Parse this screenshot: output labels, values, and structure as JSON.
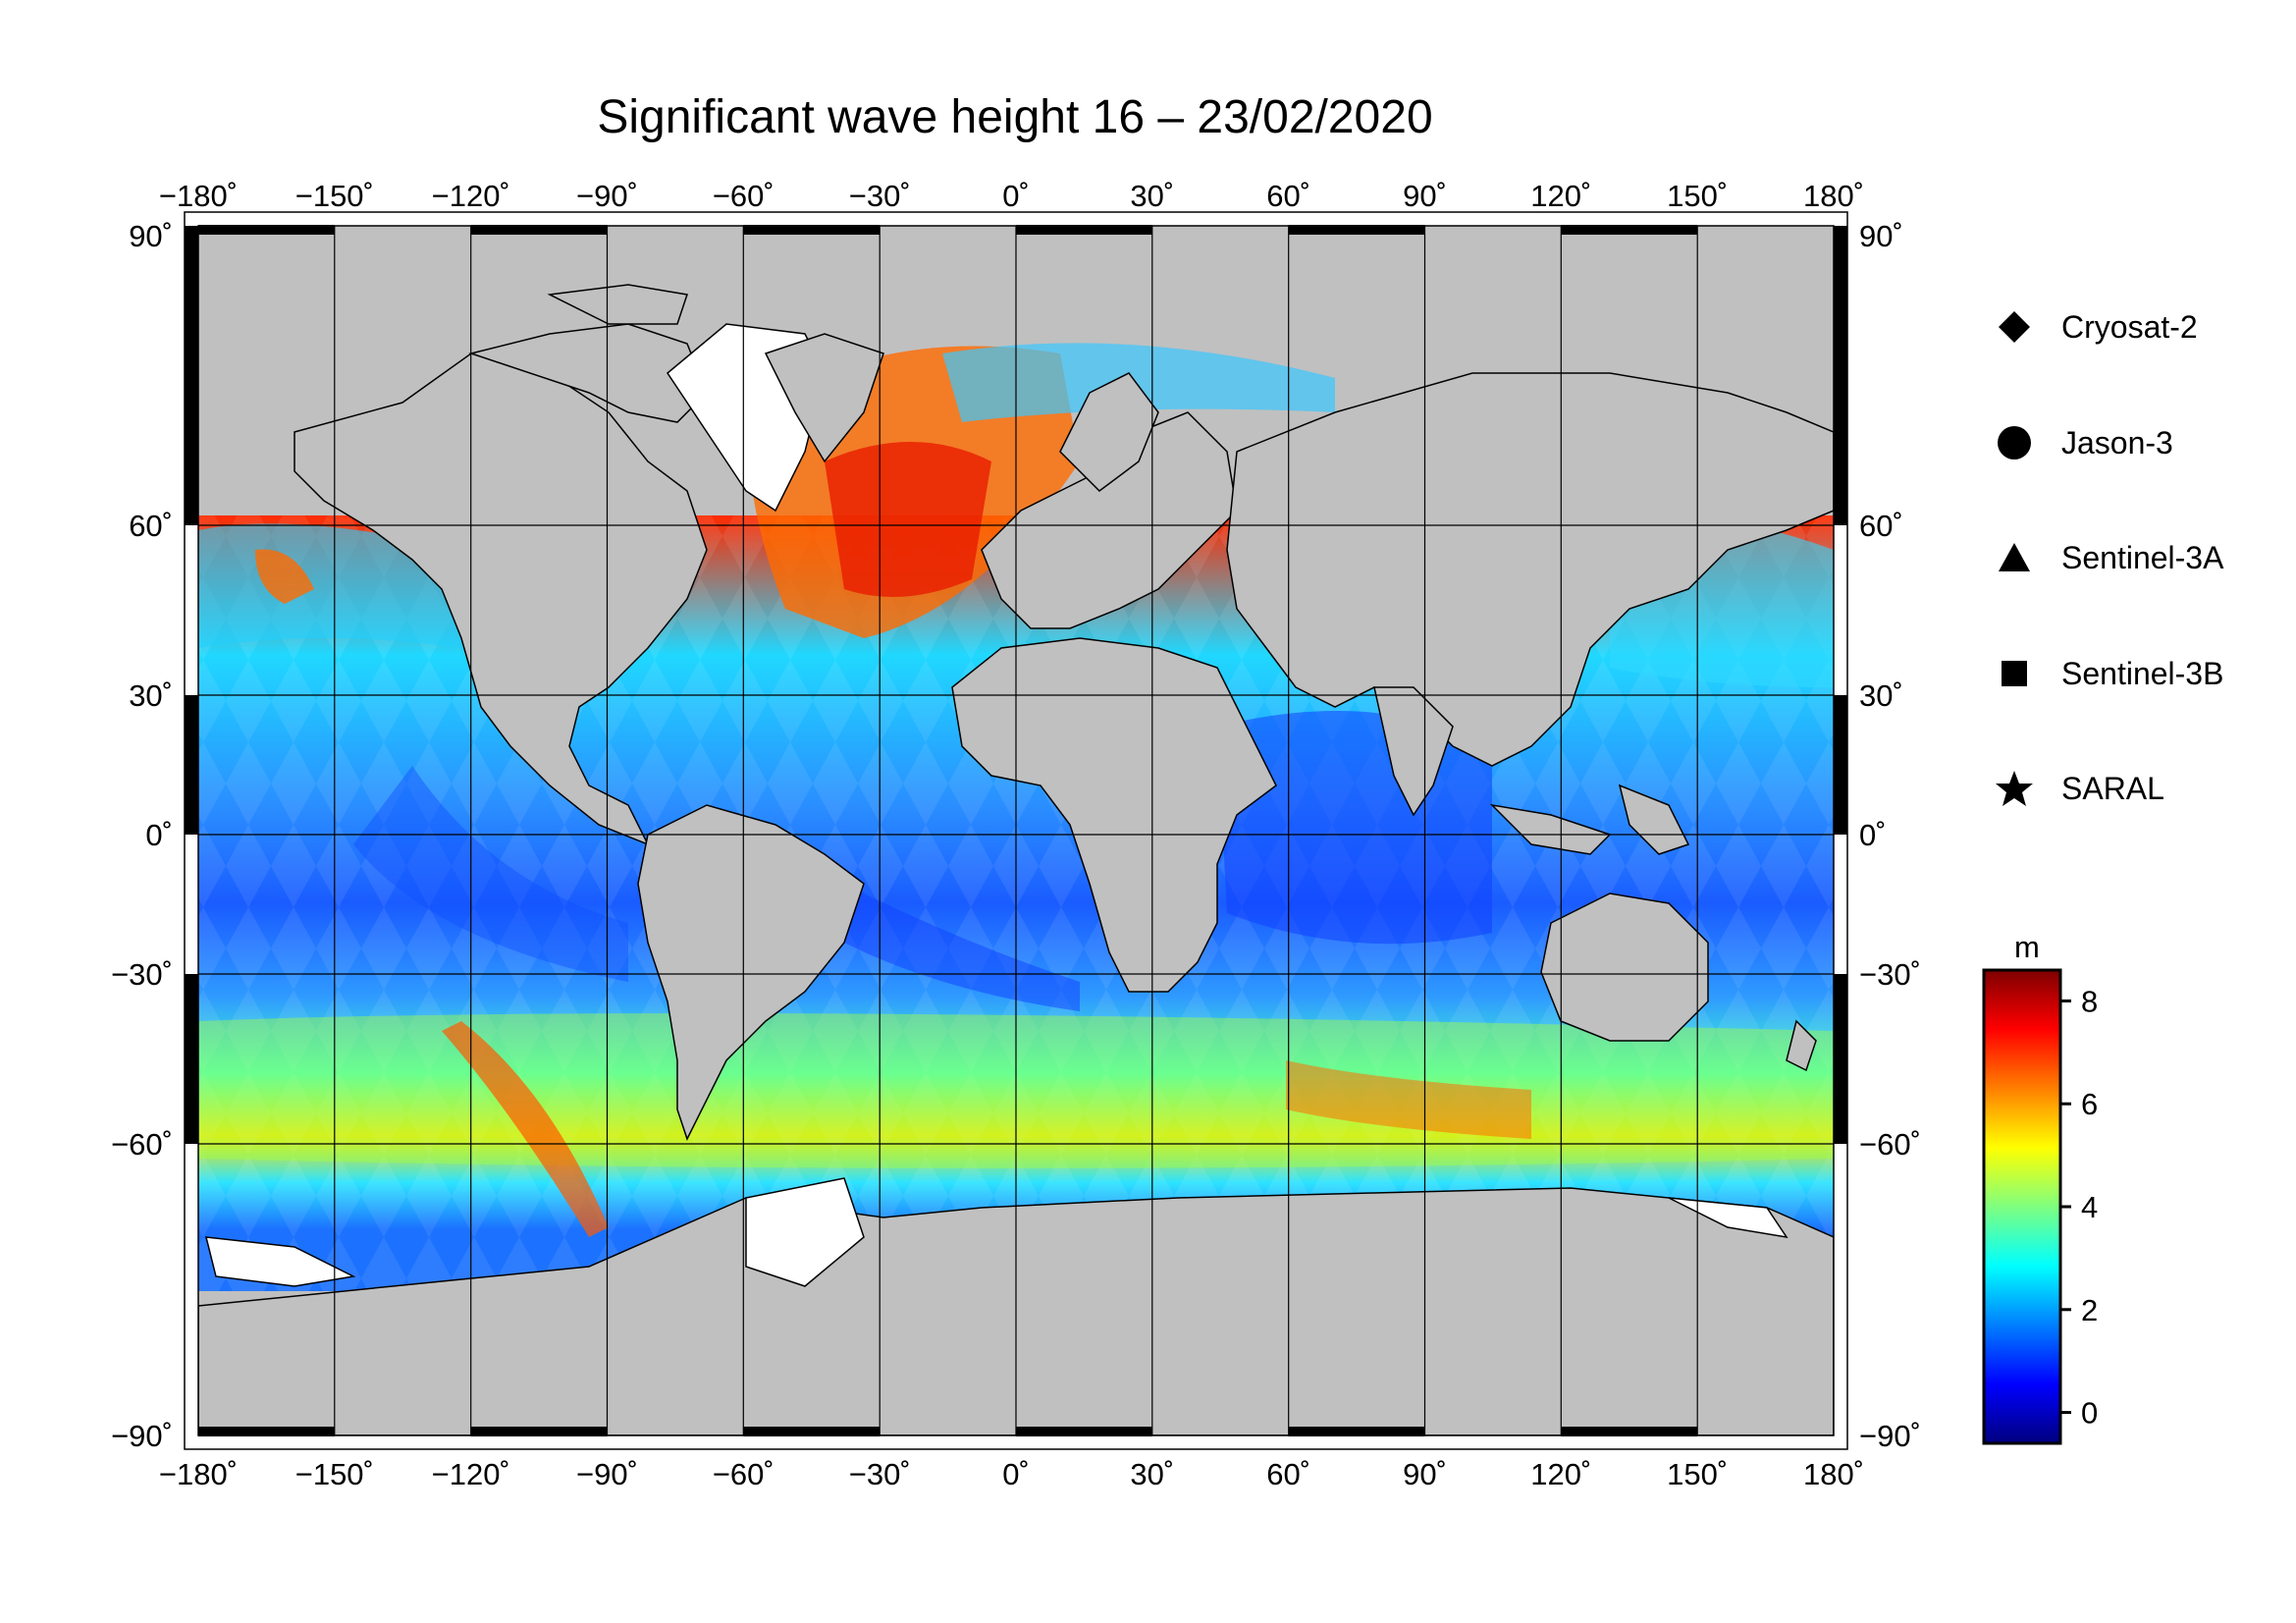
{
  "title": "Significant wave height 16 – 23/02/2020",
  "map": {
    "lon_ticks": [
      "−180˚",
      "−150˚",
      "−120˚",
      "−90˚",
      "−60˚",
      "−30˚",
      "0˚",
      "30˚",
      "60˚",
      "90˚",
      "120˚",
      "150˚",
      "180˚"
    ],
    "lat_ticks": [
      "90˚",
      "60˚",
      "30˚",
      "0˚",
      "−30˚",
      "−60˚",
      "−90˚"
    ],
    "colors": {
      "land": "#c0c0c0",
      "ice": "#ffffff",
      "frame": "#000000",
      "grid": "#000000"
    }
  },
  "legend": {
    "items": [
      {
        "label": "Cryosat-2",
        "icon": "diamond-icon"
      },
      {
        "label": "Jason-3",
        "icon": "circle-icon"
      },
      {
        "label": "Sentinel-3A",
        "icon": "triangle-icon"
      },
      {
        "label": "Sentinel-3B",
        "icon": "square-icon"
      },
      {
        "label": "SARAL",
        "icon": "star-icon"
      }
    ]
  },
  "colorbar": {
    "unit": "m",
    "ticks": [
      "8",
      "6",
      "4",
      "2",
      "0"
    ],
    "tick_values": [
      8,
      6,
      4,
      2,
      0
    ],
    "range": [
      -0.6,
      8.6
    ],
    "colormap": [
      "#00007f",
      "#0000ff",
      "#007fff",
      "#00ffff",
      "#7fff7f",
      "#ffff00",
      "#ff7f00",
      "#ff0000",
      "#7f0000"
    ]
  }
}
